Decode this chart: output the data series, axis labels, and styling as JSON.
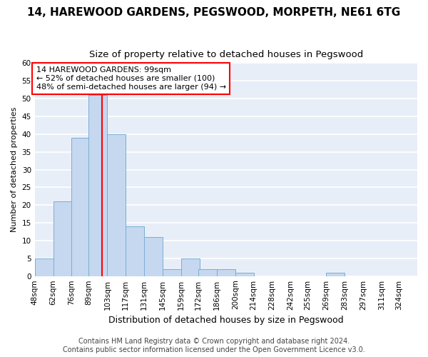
{
  "title": "14, HAREWOOD GARDENS, PEGSWOOD, MORPETH, NE61 6TG",
  "subtitle": "Size of property relative to detached houses in Pegswood",
  "xlabel": "Distribution of detached houses by size in Pegswood",
  "ylabel": "Number of detached properties",
  "bar_edges": [
    48,
    62,
    76,
    89,
    103,
    117,
    131,
    145,
    159,
    172,
    186,
    200,
    214,
    228,
    242,
    255,
    269,
    283,
    297,
    311,
    324
  ],
  "bar_labels": [
    "48sqm",
    "62sqm",
    "76sqm",
    "89sqm",
    "103sqm",
    "117sqm",
    "131sqm",
    "145sqm",
    "159sqm",
    "172sqm",
    "186sqm",
    "200sqm",
    "214sqm",
    "228sqm",
    "242sqm",
    "255sqm",
    "269sqm",
    "283sqm",
    "297sqm",
    "311sqm",
    "324sqm"
  ],
  "bar_heights": [
    5,
    21,
    39,
    51,
    40,
    14,
    11,
    2,
    5,
    2,
    2,
    1,
    0,
    0,
    0,
    0,
    1,
    0,
    0,
    0,
    0
  ],
  "bar_color": "#c5d8f0",
  "bar_edge_color": "#7aadd4",
  "property_line_x": 99,
  "property_line_color": "red",
  "annotation_text": "14 HAREWOOD GARDENS: 99sqm\n← 52% of detached houses are smaller (100)\n48% of semi-detached houses are larger (94) →",
  "annotation_box_color": "white",
  "annotation_box_edge_color": "red",
  "ylim": [
    0,
    60
  ],
  "yticks": [
    0,
    5,
    10,
    15,
    20,
    25,
    30,
    35,
    40,
    45,
    50,
    55,
    60
  ],
  "footer_line1": "Contains HM Land Registry data © Crown copyright and database right 2024.",
  "footer_line2": "Contains public sector information licensed under the Open Government Licence v3.0.",
  "background_color": "#e8eef8",
  "grid_color": "#ffffff",
  "title_fontsize": 11,
  "subtitle_fontsize": 9.5,
  "xlabel_fontsize": 9,
  "ylabel_fontsize": 8,
  "tick_fontsize": 7.5,
  "annotation_fontsize": 8,
  "footer_fontsize": 7
}
